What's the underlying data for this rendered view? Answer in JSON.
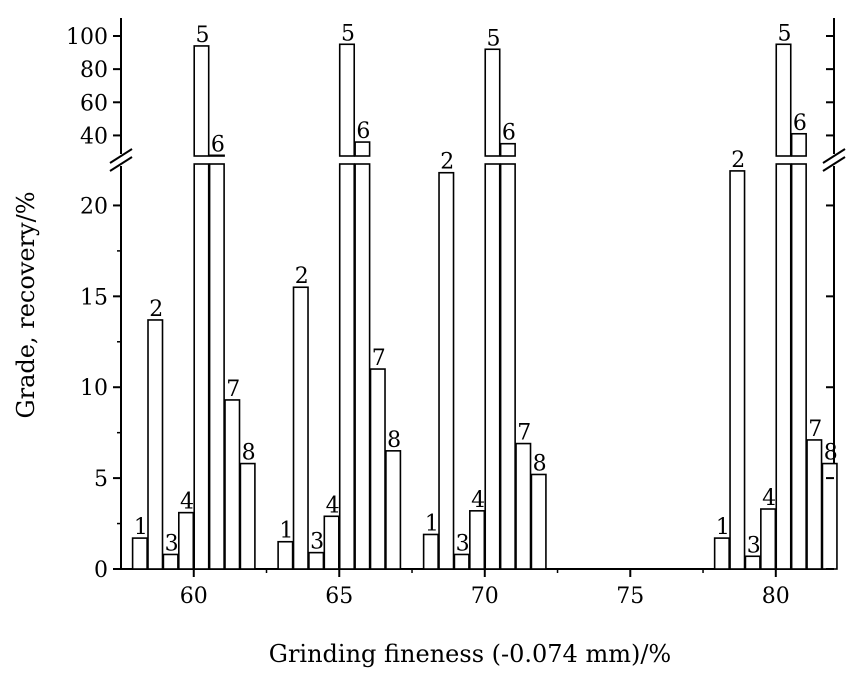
{
  "chart_data": {
    "type": "bar",
    "title": "",
    "xlabel": "Grinding fineness (-0.074 mm)/%",
    "ylabel": "Grade, recovery/%",
    "x_ticks": [
      "60",
      "65",
      "70",
      "75",
      "80"
    ],
    "xlim": [
      57.5,
      82
    ],
    "y_lower_ticks": [
      "0",
      "5",
      "10",
      "15",
      "20"
    ],
    "y_upper_ticks": [
      "40",
      "60",
      "80",
      "100"
    ],
    "ylim_lower": [
      0,
      22.5
    ],
    "ylim_upper": [
      30,
      100
    ],
    "axis_break": true,
    "grid": false,
    "bar_fill": "#ffffff",
    "bar_stroke": "#000000",
    "series_labels": [
      "1",
      "2",
      "3",
      "4",
      "5",
      "6",
      "7",
      "8"
    ],
    "groups": [
      {
        "x": 60,
        "values": [
          1.7,
          13.7,
          0.8,
          3.1,
          94,
          28,
          9.3,
          5.8
        ]
      },
      {
        "x": 65,
        "values": [
          1.5,
          15.5,
          0.9,
          2.9,
          95,
          36,
          11.0,
          6.5
        ]
      },
      {
        "x": 70,
        "values": [
          1.9,
          21.8,
          0.8,
          3.2,
          92,
          35,
          6.9,
          5.2
        ]
      },
      {
        "x": 80,
        "values": [
          1.7,
          21.9,
          0.7,
          3.3,
          95,
          41,
          7.1,
          5.8
        ]
      }
    ]
  }
}
